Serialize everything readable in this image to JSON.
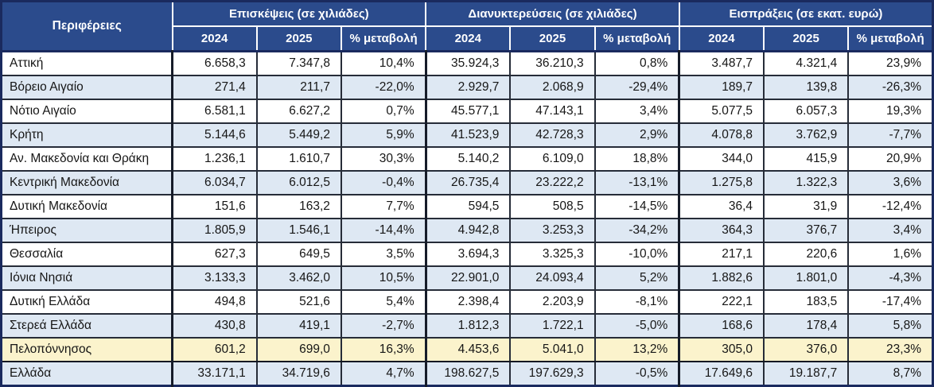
{
  "colors": {
    "header_bg": "#2b4b8c",
    "header_text": "#ffffff",
    "row_alt_bg": "#dee8f3",
    "highlight_row_bg": "#fbf3cc",
    "outer_border": "#1a2a5e",
    "cell_border": "#262c38"
  },
  "chart_data": {
    "type": "table",
    "row_header": "Περιφέρειες",
    "column_groups": [
      {
        "label": "Επισκέψεις (σε χιλιάδες)",
        "columns": [
          "2024",
          "2025",
          "% μεταβολή"
        ]
      },
      {
        "label": "Διανυκτερεύσεις (σε χιλιάδες)",
        "columns": [
          "2024",
          "2025",
          "% μεταβολή"
        ]
      },
      {
        "label": "Εισπράξεις (σε εκατ. ευρώ)",
        "columns": [
          "2024",
          "2025",
          "% μεταβολή"
        ]
      }
    ],
    "sub_headers": [
      "2024",
      "2025",
      "% μεταβολή"
    ],
    "highlighted_row": "Πελοπόννησος",
    "rows": [
      {
        "region": "Αττική",
        "highlight": false,
        "values": [
          "6.658,3",
          "7.347,8",
          "10,4%",
          "35.924,3",
          "36.210,3",
          "0,8%",
          "3.487,7",
          "4.321,4",
          "23,9%"
        ]
      },
      {
        "region": "Βόρειο Αιγαίο",
        "highlight": false,
        "values": [
          "271,4",
          "211,7",
          "-22,0%",
          "2.929,7",
          "2.068,9",
          "-29,4%",
          "189,7",
          "139,8",
          "-26,3%"
        ]
      },
      {
        "region": "Νότιο Αιγαίο",
        "highlight": false,
        "values": [
          "6.581,1",
          "6.627,2",
          "0,7%",
          "45.577,1",
          "47.143,1",
          "3,4%",
          "5.077,5",
          "6.057,3",
          "19,3%"
        ]
      },
      {
        "region": "Κρήτη",
        "highlight": false,
        "values": [
          "5.144,6",
          "5.449,2",
          "5,9%",
          "41.523,9",
          "42.728,3",
          "2,9%",
          "4.078,8",
          "3.762,9",
          "-7,7%"
        ]
      },
      {
        "region": "Αν. Μακεδονία και Θράκη",
        "highlight": false,
        "values": [
          "1.236,1",
          "1.610,7",
          "30,3%",
          "5.140,2",
          "6.109,0",
          "18,8%",
          "344,0",
          "415,9",
          "20,9%"
        ]
      },
      {
        "region": "Κεντρική Μακεδονία",
        "highlight": false,
        "values": [
          "6.034,7",
          "6.012,5",
          "-0,4%",
          "26.735,4",
          "23.222,2",
          "-13,1%",
          "1.275,8",
          "1.322,3",
          "3,6%"
        ]
      },
      {
        "region": "Δυτική Μακεδονία",
        "highlight": false,
        "values": [
          "151,6",
          "163,2",
          "7,7%",
          "594,5",
          "508,5",
          "-14,5%",
          "36,4",
          "31,9",
          "-12,4%"
        ]
      },
      {
        "region": "Ήπειρος",
        "highlight": false,
        "values": [
          "1.805,9",
          "1.546,1",
          "-14,4%",
          "4.942,8",
          "3.253,3",
          "-34,2%",
          "364,3",
          "376,7",
          "3,4%"
        ]
      },
      {
        "region": "Θεσσαλία",
        "highlight": false,
        "values": [
          "627,3",
          "649,5",
          "3,5%",
          "3.694,3",
          "3.325,3",
          "-10,0%",
          "217,1",
          "220,6",
          "1,6%"
        ]
      },
      {
        "region": "Ιόνια Νησιά",
        "highlight": false,
        "values": [
          "3.133,3",
          "3.462,0",
          "10,5%",
          "22.901,0",
          "24.093,4",
          "5,2%",
          "1.882,6",
          "1.801,0",
          "-4,3%"
        ]
      },
      {
        "region": "Δυτική Ελλάδα",
        "highlight": false,
        "values": [
          "494,8",
          "521,6",
          "5,4%",
          "2.398,4",
          "2.203,9",
          "-8,1%",
          "222,1",
          "183,5",
          "-17,4%"
        ]
      },
      {
        "region": "Στερεά Ελλάδα",
        "highlight": false,
        "values": [
          "430,8",
          "419,1",
          "-2,7%",
          "1.812,3",
          "1.722,1",
          "-5,0%",
          "168,6",
          "178,4",
          "5,8%"
        ]
      },
      {
        "region": "Πελοπόννησος",
        "highlight": true,
        "values": [
          "601,2",
          "699,0",
          "16,3%",
          "4.453,6",
          "5.041,0",
          "13,2%",
          "305,0",
          "376,0",
          "23,3%"
        ]
      },
      {
        "region": "Ελλάδα",
        "highlight": false,
        "values": [
          "33.171,1",
          "34.719,6",
          "4,7%",
          "198.627,5",
          "197.629,3",
          "-0,5%",
          "17.649,6",
          "19.187,7",
          "8,7%"
        ]
      }
    ]
  }
}
